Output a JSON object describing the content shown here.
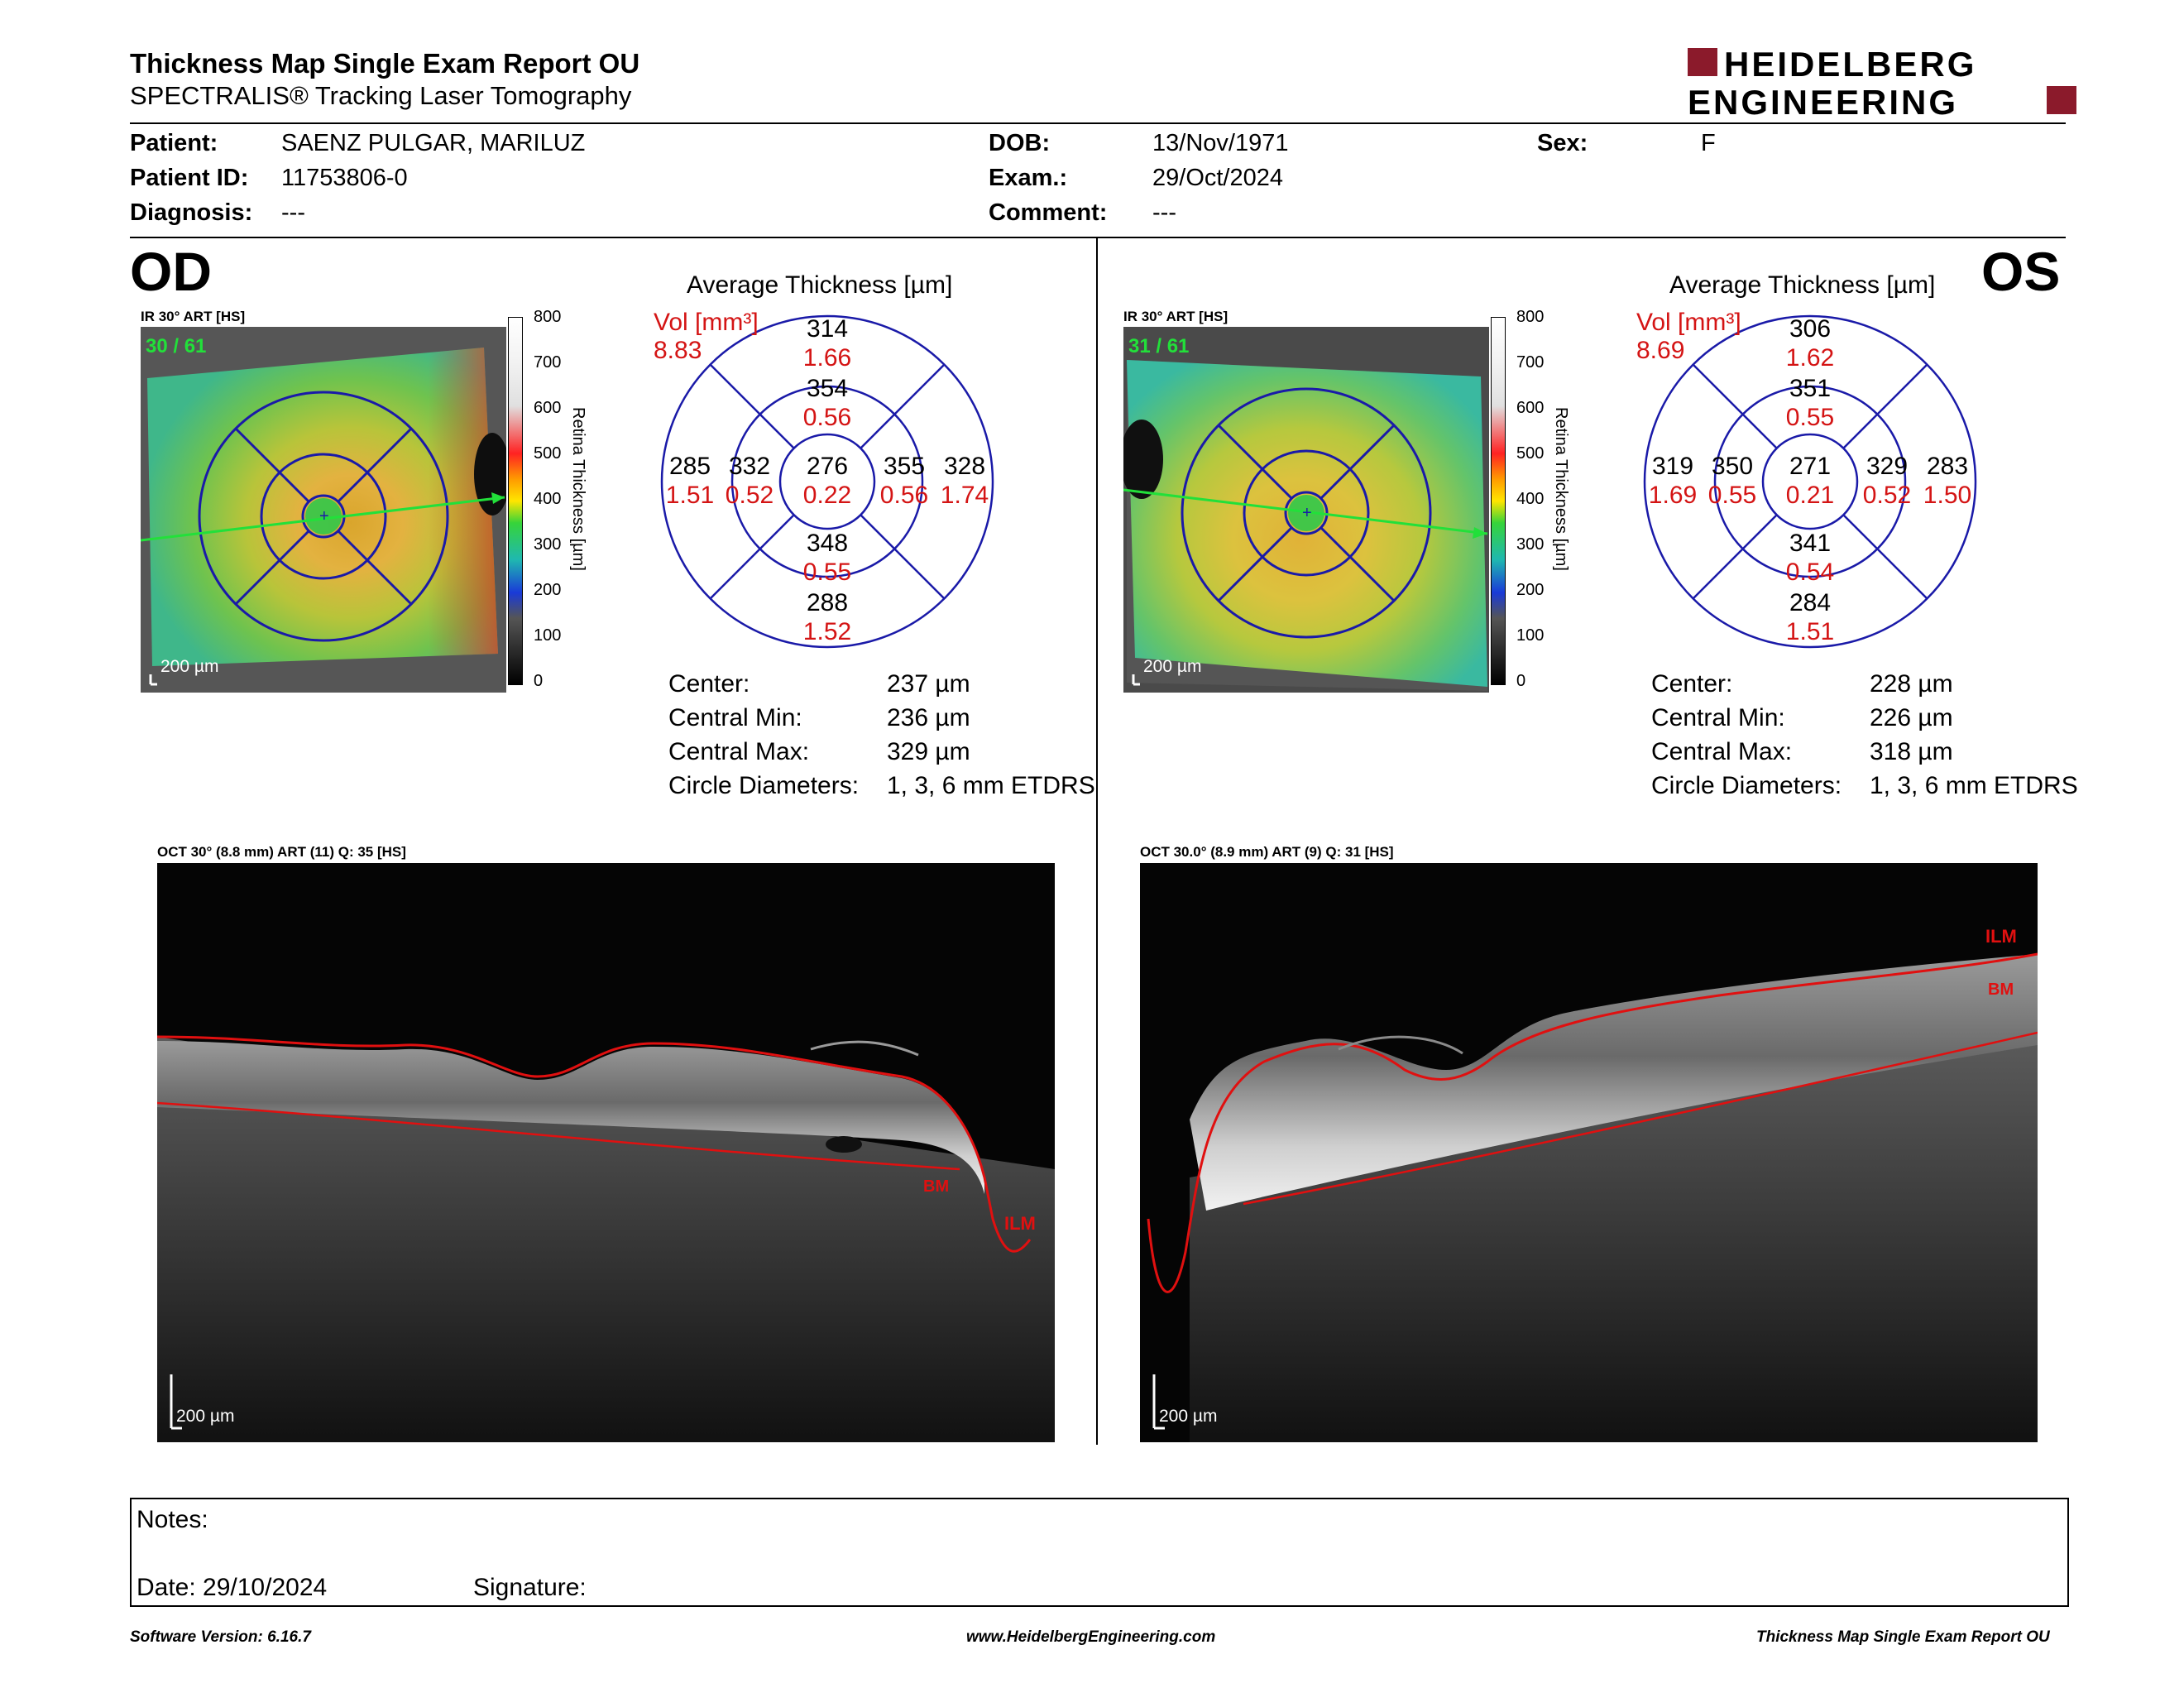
{
  "header": {
    "title": "Thickness Map Single Exam Report OU",
    "subtitle": "SPECTRALIS® Tracking Laser Tomography",
    "logo_line1": "HEIDELBERG",
    "logo_line2": "ENGINEERING",
    "brand_color": "#8b1a2b"
  },
  "patient": {
    "patient_label": "Patient:",
    "patient_value": "SAENZ PULGAR, MARILUZ",
    "id_label": "Patient ID:",
    "id_value": "11753806-0",
    "diagnosis_label": "Diagnosis:",
    "diagnosis_value": "---",
    "dob_label": "DOB:",
    "dob_value": "13/Nov/1971",
    "exam_label": "Exam.:",
    "exam_value": "29/Oct/2024",
    "comment_label": "Comment:",
    "comment_value": "---",
    "sex_label": "Sex:",
    "sex_value": "F"
  },
  "od": {
    "eye_label": "OD",
    "ir_caption": "IR 30° ART [HS]",
    "frames": "30 / 61",
    "scale_label": "200 µm",
    "colorbar_ticks": [
      "800",
      "700",
      "600",
      "500",
      "400",
      "300",
      "200",
      "100",
      "0"
    ],
    "colorbar_title": "Retina  Thickness [µm]",
    "avg_title": "Average Thickness [µm]",
    "vol_label": "Vol [mm³]",
    "vol_total": "8.83",
    "center": {
      "thick": "276",
      "vol": "0.22"
    },
    "inner": {
      "superior": {
        "thick": "354",
        "vol": "0.56"
      },
      "nasal_left": {
        "thick": "332",
        "vol": "0.52"
      },
      "right": {
        "thick": "355",
        "vol": "0.56"
      },
      "inferior": {
        "thick": "348",
        "vol": "0.55"
      }
    },
    "outer": {
      "superior": {
        "thick": "314",
        "vol": "1.66"
      },
      "left": {
        "thick": "285",
        "vol": "1.51"
      },
      "right": {
        "thick": "328",
        "vol": "1.74"
      },
      "inferior": {
        "thick": "288",
        "vol": "1.52"
      }
    },
    "stats": {
      "center_label": "Center:",
      "center_value": "237 µm",
      "min_label": "Central Min:",
      "min_value": "236 µm",
      "max_label": "Central Max:",
      "max_value": "329 µm",
      "diam_label": "Circle Diameters:",
      "diam_value": "1, 3, 6 mm ETDRS"
    },
    "oct_caption": "OCT 30° (8.8 mm) ART (11) Q: 35 [HS]",
    "oct_scale": "200 µm",
    "ilm_label": "ILM",
    "bm_label": "BM"
  },
  "os": {
    "eye_label": "OS",
    "ir_caption": "IR 30° ART [HS]",
    "frames": "31 / 61",
    "scale_label": "200 µm",
    "colorbar_ticks": [
      "800",
      "700",
      "600",
      "500",
      "400",
      "300",
      "200",
      "100",
      "0"
    ],
    "colorbar_title": "Retina  Thickness [µm]",
    "avg_title": "Average Thickness [µm]",
    "vol_label": "Vol [mm³]",
    "vol_total": "8.69",
    "center": {
      "thick": "271",
      "vol": "0.21"
    },
    "inner": {
      "superior": {
        "thick": "351",
        "vol": "0.55"
      },
      "nasal_left": {
        "thick": "350",
        "vol": "0.55"
      },
      "right": {
        "thick": "329",
        "vol": "0.52"
      },
      "inferior": {
        "thick": "341",
        "vol": "0.54"
      }
    },
    "outer": {
      "superior": {
        "thick": "306",
        "vol": "1.62"
      },
      "left": {
        "thick": "319",
        "vol": "1.69"
      },
      "right": {
        "thick": "283",
        "vol": "1.50"
      },
      "inferior": {
        "thick": "284",
        "vol": "1.51"
      }
    },
    "stats": {
      "center_label": "Center:",
      "center_value": "228 µm",
      "min_label": "Central Min:",
      "min_value": "226 µm",
      "max_label": "Central Max:",
      "max_value": "318 µm",
      "diam_label": "Circle Diameters:",
      "diam_value": "1, 3, 6 mm ETDRS"
    },
    "oct_caption": "OCT 30.0° (8.9 mm) ART (9) Q: 31 [HS]",
    "oct_scale": "200 µm",
    "ilm_label": "ILM",
    "bm_label": "BM"
  },
  "notes": {
    "notes_label": "Notes:",
    "date_label": "Date: 29/10/2024",
    "signature_label": "Signature:"
  },
  "footer": {
    "software": "Software Version: 6.16.7",
    "website": "www.HeidelbergEngineering.com",
    "report": "Thickness Map Single Exam Report OU"
  }
}
